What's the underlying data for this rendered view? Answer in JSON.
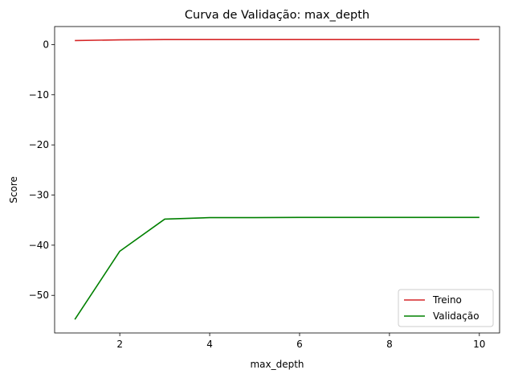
{
  "chart_data": {
    "type": "line",
    "title": "Curva de Validação: max_depth",
    "xlabel": "max_depth",
    "ylabel": "Score",
    "x": [
      1,
      2,
      3,
      4,
      5,
      6,
      7,
      8,
      9,
      10
    ],
    "xlim": [
      0.55,
      10.45
    ],
    "ylim": [
      -57.5,
      3.6
    ],
    "xticks": [
      2,
      4,
      6,
      8,
      10
    ],
    "yticks": [
      0,
      -10,
      -20,
      -30,
      -40,
      -50
    ],
    "xtick_labels": [
      "2",
      "4",
      "6",
      "8",
      "10"
    ],
    "ytick_labels": [
      "0",
      "−10",
      "−20",
      "−30",
      "−40",
      "−50"
    ],
    "grid": false,
    "legend_position": "lower-right",
    "series": [
      {
        "name": "Treino",
        "color": "#d62728",
        "values": [
          0.8,
          0.95,
          1.0,
          1.0,
          1.0,
          1.0,
          1.0,
          1.0,
          1.0,
          1.0
        ]
      },
      {
        "name": "Validação",
        "color": "#008000",
        "values": [
          -54.8,
          -41.2,
          -34.8,
          -34.5,
          -34.5,
          -34.45,
          -34.45,
          -34.45,
          -34.45,
          -34.45
        ]
      }
    ]
  }
}
